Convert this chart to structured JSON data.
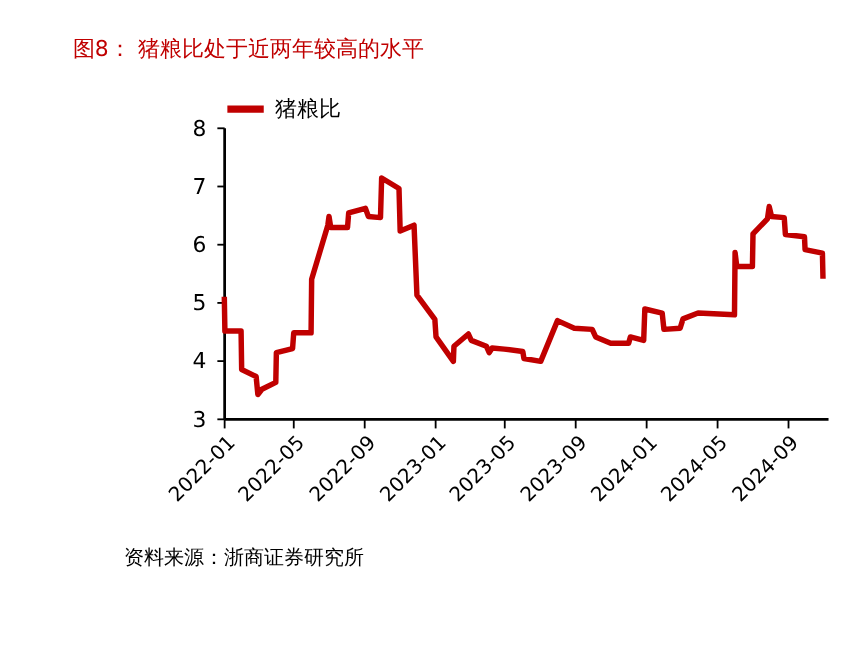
{
  "chart_data": {
    "type": "line",
    "title": "图8：  猪粮比处于近两年较高的水平",
    "annotations": [
      "资料来源：浙商证券研究所"
    ],
    "x": [
      "2022-01-02",
      "2022-01-03",
      "2022-01-31",
      "2022-02-01",
      "2022-02-26",
      "2022-03-01",
      "2022-03-08",
      "2022-04-01",
      "2022-04-02",
      "2022-04-30",
      "2022-05-02",
      "2022-06-01",
      "2022-06-02",
      "2022-06-30",
      "2022-07-02",
      "2022-07-05",
      "2022-08-03",
      "2022-08-05",
      "2022-09-03",
      "2022-09-08",
      "2022-09-29",
      "2022-10-01",
      "2022-10-31",
      "2022-11-02",
      "2022-11-26",
      "2022-12-01",
      "2023-01-01",
      "2023-01-03",
      "2023-02-02",
      "2023-02-03",
      "2023-02-28",
      "2023-03-05",
      "2023-03-31",
      "2023-04-05",
      "2023-04-10",
      "2023-05-01",
      "2023-06-02",
      "2023-06-04",
      "2023-07-03",
      "2023-08-01",
      "2023-08-30",
      "2023-09-30",
      "2023-10-06",
      "2023-11-01",
      "2023-12-02",
      "2023-12-05",
      "2023-12-28",
      "2023-12-30",
      "2024-01-29",
      "2024-02-01",
      "2024-02-29",
      "2024-03-05",
      "2024-03-31",
      "2024-06-02",
      "2024-06-03",
      "2024-06-06",
      "2024-07-03",
      "2024-07-04",
      "2024-07-29",
      "2024-08-01",
      "2024-08-05",
      "2024-08-27",
      "2024-08-29",
      "2024-10-01",
      "2024-10-02",
      "2024-11-01",
      "2024-11-02"
    ],
    "series": [
      {
        "name": "猪粮比",
        "color": "#c00000",
        "values": [
          5.09,
          4.5,
          4.5,
          3.84,
          3.72,
          3.41,
          3.5,
          3.62,
          4.13,
          4.2,
          4.47,
          4.47,
          5.39,
          6.32,
          6.47,
          6.28,
          6.28,
          6.53,
          6.61,
          6.47,
          6.45,
          7.13,
          6.95,
          6.22,
          6.32,
          5.12,
          4.7,
          4.4,
          3.98,
          4.24,
          4.45,
          4.34,
          4.24,
          4.13,
          4.21,
          4.19,
          4.15,
          4.03,
          3.98,
          4.68,
          4.55,
          4.53,
          4.4,
          4.29,
          4.29,
          4.4,
          4.34,
          4.88,
          4.81,
          4.53,
          4.55,
          4.71,
          4.81,
          4.78,
          5.85,
          5.61,
          5.61,
          6.17,
          6.43,
          6.64,
          6.47,
          6.45,
          6.16,
          6.12,
          5.9,
          5.84,
          5.4
        ]
      }
    ],
    "xlim": [
      "2022-01-01",
      "2024-11-10"
    ],
    "xticks": [
      "2022-01",
      "2022-05",
      "2022-09",
      "2023-01",
      "2023-05",
      "2023-09",
      "2024-01",
      "2024-05",
      "2024-09"
    ],
    "ylim": [
      3,
      8
    ],
    "yticks": [
      3,
      4,
      5,
      6,
      7,
      8
    ],
    "grid": false,
    "legend": "top",
    "marker": "none",
    "line_style": "solid"
  }
}
